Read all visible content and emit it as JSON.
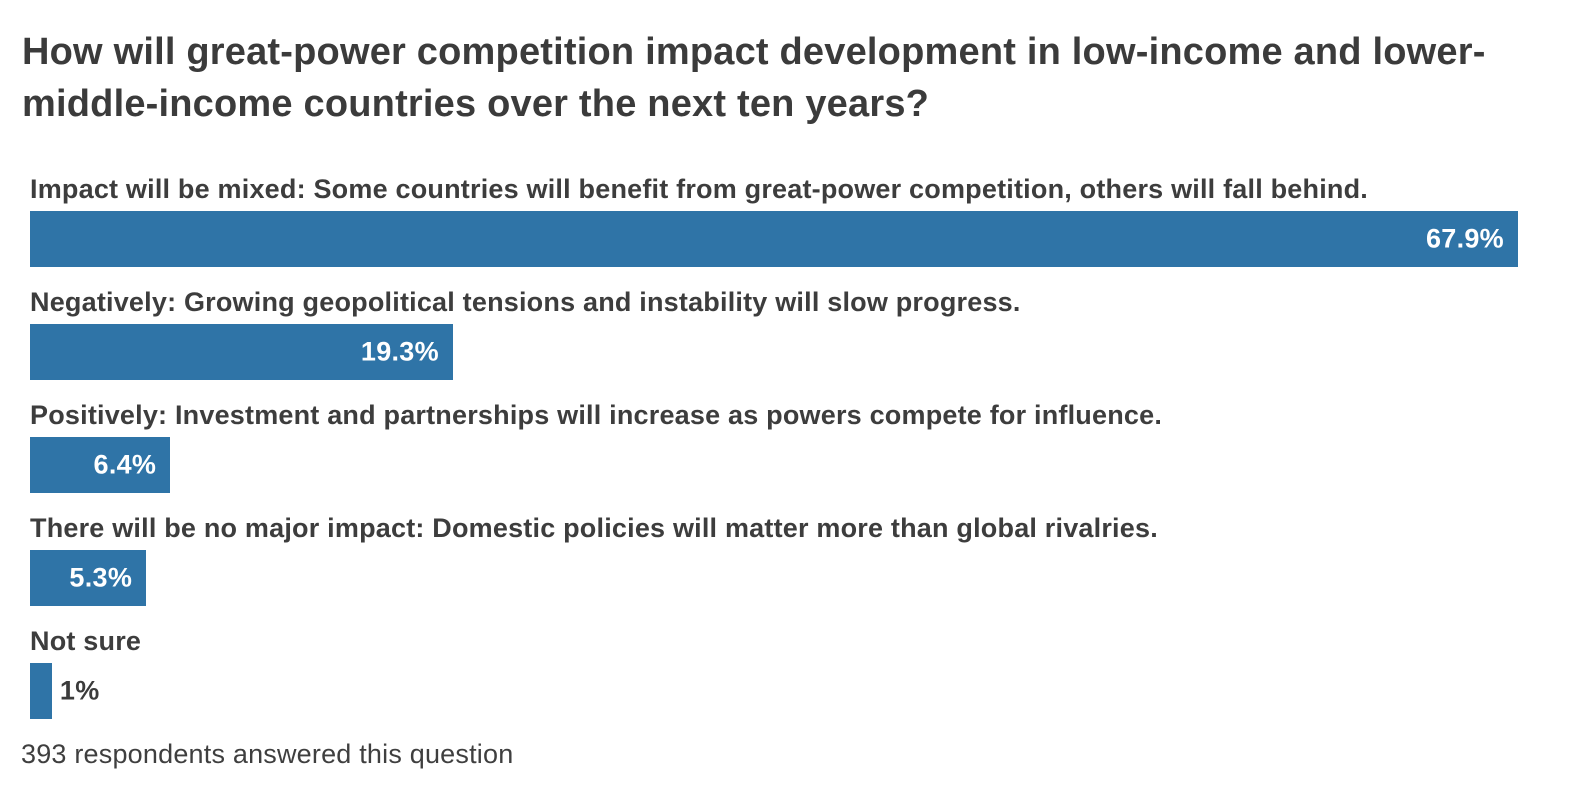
{
  "title": "How will great-power competition impact development in low-income and lower-middle-income countries over the next ten years?",
  "footer_note": "393 respondents answered this question",
  "colors": {
    "bar": "#2F74A7",
    "title_text": "#3b3b3b",
    "label_text": "#3d3d3d",
    "value_inside_text": "#ffffff",
    "value_outside_text": "#3b3b3b",
    "background": "#ffffff"
  },
  "chart_data": {
    "type": "bar",
    "orientation": "horizontal",
    "title": "How will great-power competition impact development in low-income and lower-middle-income countries over the next ten years?",
    "xlabel": "",
    "ylabel": "",
    "value_unit": "%",
    "scale_max": 67.9,
    "grid": false,
    "legend": false,
    "categories": [
      "Impact will be mixed: Some countries will benefit from great-power competition, others will fall behind.",
      "Negatively: Growing geopolitical tensions and instability will slow progress.",
      "Positively: Investment and partnerships will increase as powers compete for influence.",
      "There will be no major impact: Domestic policies will matter more than global rivalries.",
      "Not sure"
    ],
    "values": [
      67.9,
      19.3,
      6.4,
      5.3,
      1
    ],
    "rows": [
      {
        "label": "Impact will be mixed: Some countries will benefit from great-power competition, others will fall behind.",
        "value": 67.9,
        "display": "67.9%",
        "label_position": "inside"
      },
      {
        "label": "Negatively: Growing geopolitical tensions and instability will slow progress.",
        "value": 19.3,
        "display": "19.3%",
        "label_position": "inside"
      },
      {
        "label": "Positively: Investment and partnerships will increase as powers compete for influence.",
        "value": 6.4,
        "display": "6.4%",
        "label_position": "inside"
      },
      {
        "label": "There will be no major impact: Domestic policies will matter more than global rivalries.",
        "value": 5.3,
        "display": "5.3%",
        "label_position": "inside"
      },
      {
        "label": "Not sure",
        "value": 1,
        "display": "1%",
        "label_position": "outside"
      }
    ],
    "annotations": [
      "393 respondents answered this question"
    ]
  }
}
